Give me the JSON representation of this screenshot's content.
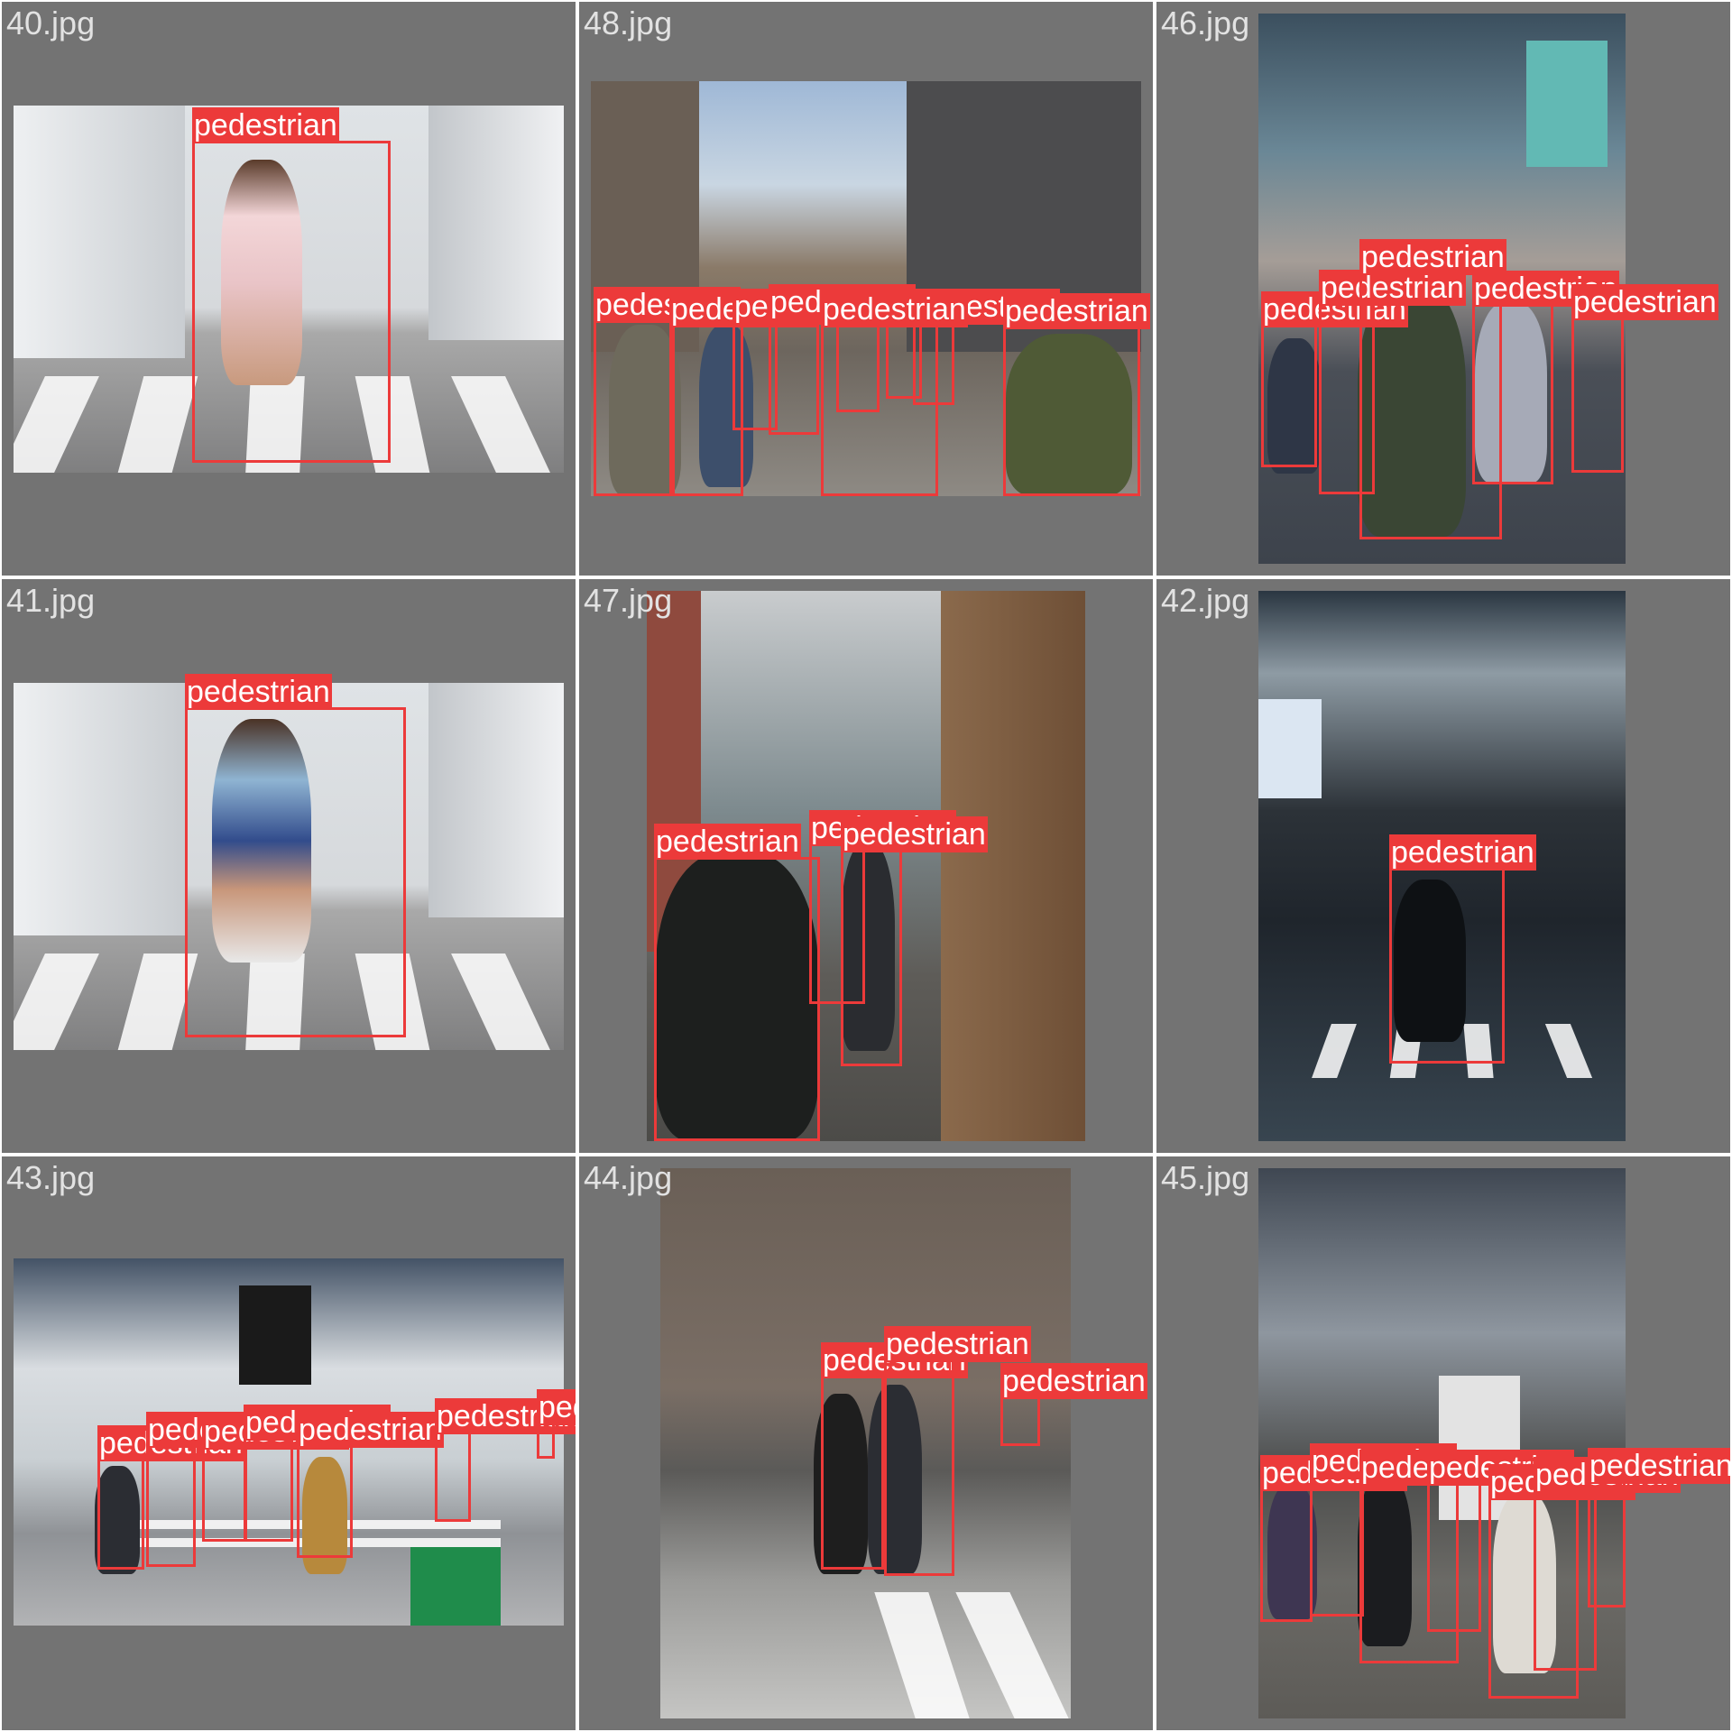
{
  "class_label": "pedestrian",
  "colors": {
    "box": "#ec3a3a",
    "cell_bg": "#737373",
    "divider": "#ffffff"
  },
  "cells": [
    {
      "file": "40.jpg"
    },
    {
      "file": "48.jpg"
    },
    {
      "file": "46.jpg"
    },
    {
      "file": "41.jpg"
    },
    {
      "file": "47.jpg"
    },
    {
      "file": "42.jpg"
    },
    {
      "file": "43.jpg"
    },
    {
      "file": "44.jpg"
    },
    {
      "file": "45.jpg"
    }
  ]
}
